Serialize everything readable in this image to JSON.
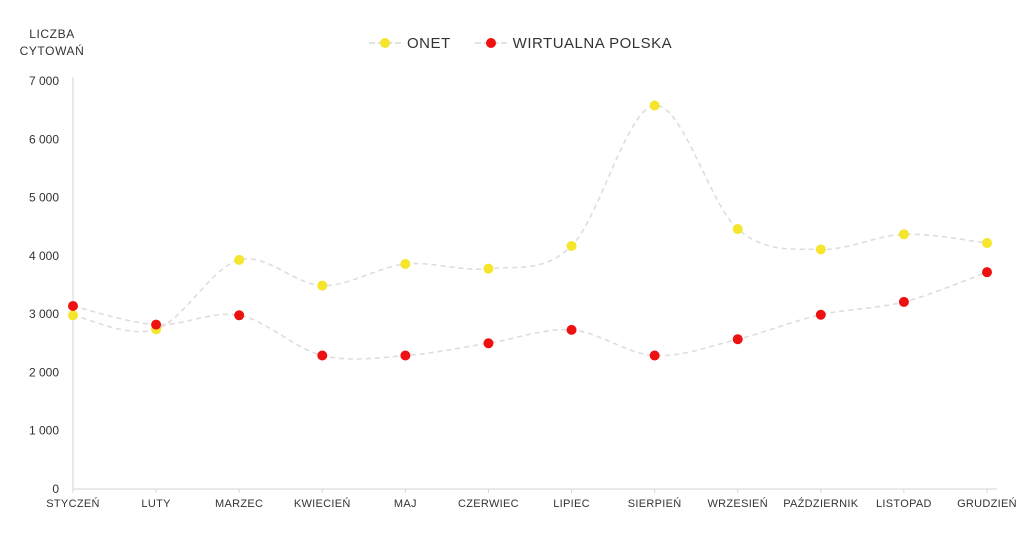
{
  "chart_data": {
    "type": "line",
    "ylabel": [
      "LICZBA",
      "CYTOWAŃ"
    ],
    "categories": [
      "STYCZEŃ",
      "LUTY",
      "MARZEC",
      "KWIECIEŃ",
      "MAJ",
      "CZERWIEC",
      "LIPIEC",
      "SIERPIEŃ",
      "WRZESIEŃ",
      "PAŹDZIERNIK",
      "LISTOPAD",
      "GRUDZIEŃ"
    ],
    "yticks": [
      "0",
      "1 000",
      "2 000",
      "3 000",
      "4 000",
      "5 000",
      "6 000",
      "7 000"
    ],
    "ylim": [
      0,
      7000
    ],
    "grid": false,
    "legend_position": "top-center",
    "series": [
      {
        "name": "ONET",
        "color": "#f5e52c",
        "values": [
          2980,
          2740,
          3930,
          3490,
          3860,
          3780,
          4170,
          6580,
          4460,
          4110,
          4370,
          4220
        ]
      },
      {
        "name": "WIRTUALNA POLSKA",
        "color": "#ee1111",
        "values": [
          3140,
          2820,
          2980,
          2290,
          2290,
          2500,
          2730,
          2290,
          2570,
          2990,
          3210,
          3720
        ]
      }
    ],
    "line_color": "#dddddd"
  }
}
